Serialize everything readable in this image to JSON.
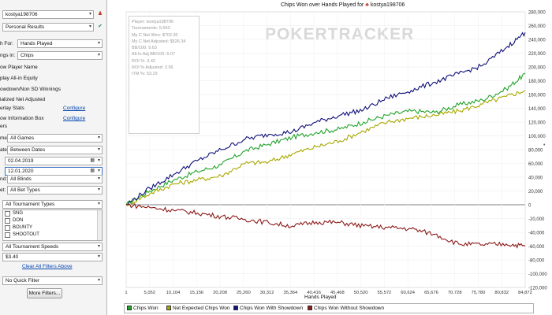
{
  "sidebar": {
    "player": "kostya198706",
    "report": "Personal Results",
    "graph_for_label": "h For:",
    "graph_for_value": "Hands Played",
    "amounts_label": "ngs in:",
    "amounts_value": "Chips",
    "options": [
      "ow Player Name",
      "play All-in Equity",
      "owdown/Non SD Winnings",
      "ialized Net Adjusted"
    ],
    "overlay_stats_label": "erlay Stats",
    "overlay_stats_link": "Configure",
    "info_box_label": "ow Information Box",
    "info_box_link": "Configure",
    "filters_label": "ers",
    "game_label": "me:",
    "game_value": "All Games",
    "date_label": "ate:",
    "date_value": "Between Dates",
    "date_from": "02.04.2019",
    "date_to": "12.01.2020",
    "blinds_label": "nd:",
    "blinds_value": "All Blinds",
    "bet_label": "et:",
    "bet_value": "All Bet Types",
    "tourn_types_value": "All Tournament Types",
    "tourn_types": [
      "SNG",
      "DON",
      "BOUNTY",
      "SHOOTOUT"
    ],
    "tourn_speeds_value": "All Tournament Speeds",
    "buyin_value": "$3.40",
    "clear_filters": "Clear All Filters Above",
    "quick_filter_value": "No Quick Filter",
    "more_filters": "More Filters..."
  },
  "chart": {
    "title_prefix": "Chips Won over Hands Played for",
    "title_player": "kostya198706",
    "watermark": "POKERTRACKER",
    "stats": [
      "Player: kostya198706",
      "Tournaments: 5,563",
      "My C Net Won: $702.30",
      "My C Net Adjusted: $526.34",
      "BB/100: 9.63",
      "All-In Adj BB/100: 6.07",
      "ROI %: 3.42",
      "ROI % Adjusted: 2.56",
      "ITM %: 53.23"
    ],
    "x_title": "Hands Played"
  },
  "chart_data": {
    "type": "line",
    "title": "Chips Won over Hands Played for kostya198706",
    "xlabel": "Hands Played",
    "ylabel": "",
    "xlim": [
      1,
      84872
    ],
    "ylim": [
      -120000,
      280000
    ],
    "x_ticks": [
      "1",
      "5,052",
      "10,104",
      "15,156",
      "20,208",
      "25,260",
      "30,312",
      "35,364",
      "40,416",
      "45,468",
      "50,520",
      "55,572",
      "60,624",
      "65,676",
      "70,728",
      "75,780",
      "80,832",
      "84,872"
    ],
    "y_ticks": [
      "280,000",
      "260,000",
      "240,000",
      "220,000",
      "200,000",
      "180,000",
      "160,000",
      "140,000",
      "120,000",
      "100,000",
      "80,000",
      "60,000",
      "40,000",
      "20,000",
      "0",
      "-20,000",
      "-40,000",
      "-60,000",
      "-80,000",
      "-100,000",
      "-120,000"
    ],
    "grid": true,
    "legend_position": "bottom",
    "x": [
      0,
      5052,
      10104,
      15156,
      20208,
      25260,
      30312,
      35364,
      40416,
      45468,
      50520,
      55572,
      60624,
      65676,
      70728,
      75780,
      80832,
      84872
    ],
    "series": [
      {
        "name": "Chips Won",
        "color": "#22a32a",
        "values": [
          0,
          20000,
          36000,
          48000,
          58000,
          78000,
          88000,
          98000,
          105000,
          110000,
          120000,
          130000,
          136000,
          134000,
          145000,
          152000,
          168000,
          190000
        ]
      },
      {
        "name": "Net Expected Chips Won",
        "color": "#a8a800",
        "values": [
          0,
          16000,
          30000,
          36000,
          42000,
          60000,
          62000,
          74000,
          84000,
          93000,
          107000,
          120000,
          126000,
          130000,
          136000,
          146000,
          157000,
          166000
        ]
      },
      {
        "name": "Chips Won With Showdown",
        "color": "#10107a",
        "values": [
          0,
          24000,
          44000,
          64000,
          80000,
          95000,
          102000,
          106000,
          120000,
          130000,
          138000,
          155000,
          166000,
          178000,
          190000,
          202000,
          228000,
          250000
        ]
      },
      {
        "name": "Chips Won Without Showdown",
        "color": "#8c1a1a",
        "values": [
          0,
          -4000,
          -8000,
          -12000,
          -17000,
          -21000,
          -26000,
          -31000,
          -25000,
          -26000,
          -31000,
          -33000,
          -35000,
          -43000,
          -57000,
          -58000,
          -57000,
          -60000
        ]
      }
    ]
  }
}
